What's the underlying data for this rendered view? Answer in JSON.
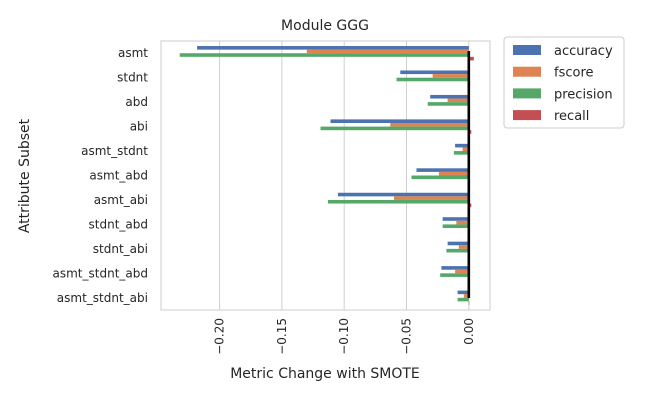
{
  "chart_data": {
    "type": "bar",
    "orientation": "horizontal",
    "title": "Module GGG",
    "xlabel": "Metric Change with SMOTE",
    "ylabel": "Attribute Subset",
    "xlim": [
      -0.247,
      0.017
    ],
    "xticks": [
      -0.2,
      -0.15,
      -0.1,
      -0.05,
      0.0
    ],
    "xtick_labels": [
      "−0.20",
      "−0.15",
      "−0.10",
      "−0.05",
      "0.00"
    ],
    "grid": "vertical",
    "legend_position": "outside-right",
    "categories": [
      "asmt",
      "stdnt",
      "abd",
      "abi",
      "asmt_stdnt",
      "asmt_abd",
      "asmt_abi",
      "stdnt_abd",
      "stdnt_abi",
      "asmt_stdnt_abd",
      "asmt_stdnt_abi"
    ],
    "series": [
      {
        "name": "accuracy",
        "color": "#4c72b0",
        "values": [
          -0.218,
          -0.055,
          -0.031,
          -0.111,
          -0.011,
          -0.042,
          -0.105,
          -0.021,
          -0.017,
          -0.022,
          -0.009
        ]
      },
      {
        "name": "fscore",
        "color": "#dd8452",
        "values": [
          -0.13,
          -0.029,
          -0.017,
          -0.063,
          -0.005,
          -0.024,
          -0.06,
          -0.01,
          -0.008,
          -0.011,
          -0.004
        ]
      },
      {
        "name": "precision",
        "color": "#55a868",
        "values": [
          -0.232,
          -0.058,
          -0.033,
          -0.119,
          -0.012,
          -0.046,
          -0.113,
          -0.021,
          -0.018,
          -0.023,
          -0.009
        ]
      },
      {
        "name": "recall",
        "color": "#c44e52",
        "values": [
          0.004,
          0.001,
          0.0,
          0.002,
          0.0,
          0.001,
          0.002,
          0.0,
          0.0,
          0.0,
          0.0
        ]
      }
    ]
  }
}
